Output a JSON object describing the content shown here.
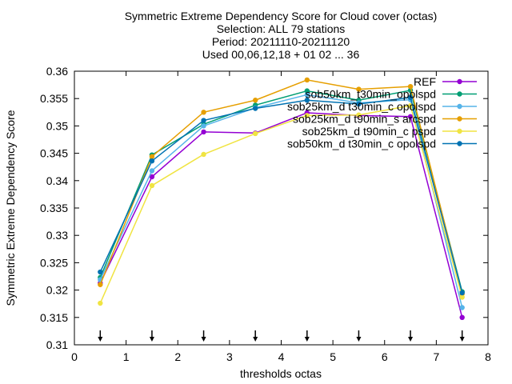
{
  "chart_data": {
    "type": "line",
    "title_lines": [
      "Symmetric Extreme Dependency Score  for Cloud cover (octas)",
      "Selection: ALL     79 stations",
      "Period: 20211110-20211120",
      "Used 00,06,12,18 + 01 02 ... 36"
    ],
    "xlabel": "thresholds octas",
    "ylabel": "Symmetric Extreme Dependency Score",
    "xlim": [
      0,
      8
    ],
    "ylim": [
      0.31,
      0.36
    ],
    "xticks": [
      "0",
      "1",
      "2",
      "3",
      "4",
      "5",
      "6",
      "7",
      "8"
    ],
    "yticks": [
      "0.31",
      "0.315",
      "0.32",
      "0.325",
      "0.33",
      "0.335",
      "0.34",
      "0.345",
      "0.35",
      "0.355",
      "0.36"
    ],
    "x": [
      0.5,
      1.5,
      2.5,
      3.5,
      4.5,
      5.5,
      6.5,
      7.5
    ],
    "legend_position": "top-right",
    "series": [
      {
        "name": "REF",
        "color": "#9400d3",
        "values": [
          0.3213,
          0.3407,
          0.3489,
          0.3487,
          0.3524,
          0.3519,
          0.3517,
          0.315
        ]
      },
      {
        "name": "sob50km_t30min_opolspd",
        "color": "#009e73",
        "values": [
          0.3223,
          0.3447,
          0.3503,
          0.3538,
          0.3564,
          0.3547,
          0.3565,
          0.3197
        ]
      },
      {
        "name": "sob25km_d t30min_c opolspd",
        "color": "#56b4e9",
        "values": [
          0.3219,
          0.3418,
          0.35,
          0.3533,
          0.3557,
          0.3542,
          0.3548,
          0.3168
        ]
      },
      {
        "name": "sob25km_d t90min_s arcspd",
        "color": "#e69f00",
        "values": [
          0.321,
          0.3444,
          0.3525,
          0.3547,
          0.3584,
          0.3567,
          0.3572,
          0.3193
        ]
      },
      {
        "name": "sob25km_d t90min_c pspd",
        "color": "#f0e442",
        "values": [
          0.3176,
          0.3391,
          0.3448,
          0.3486,
          0.3519,
          0.352,
          0.3537,
          0.3187
        ]
      },
      {
        "name": "sob50km_d t30min_c opolspd",
        "color": "#0072b2",
        "values": [
          0.3233,
          0.3436,
          0.351,
          0.3532,
          0.3547,
          0.354,
          0.3552,
          0.3195
        ]
      }
    ],
    "arrow_markers_x": [
      0.5,
      1.5,
      2.5,
      3.5,
      4.5,
      5.5,
      6.5,
      7.5
    ]
  }
}
